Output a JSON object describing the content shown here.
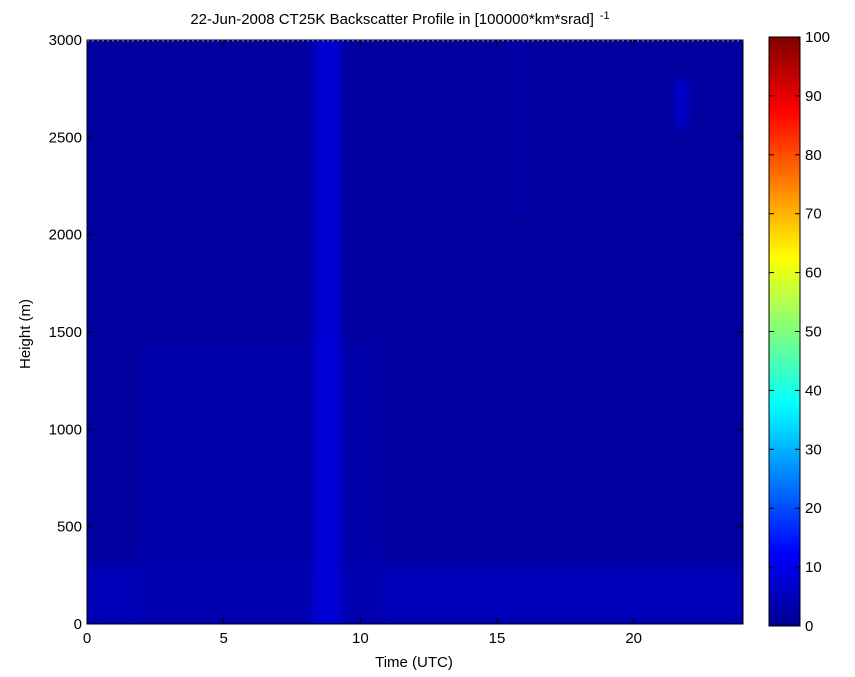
{
  "chart_data": {
    "type": "heatmap",
    "title": "22-Jun-2008 CT25K Backscatter Profile in [100000*km*srad]",
    "title_superscript": "-1",
    "xlabel": "Time (UTC)",
    "ylabel": "Height (m)",
    "xlim": [
      0,
      24
    ],
    "ylim": [
      0,
      3000
    ],
    "xticks": [
      0,
      5,
      10,
      15,
      20
    ],
    "yticks": [
      0,
      500,
      1000,
      1500,
      2000,
      2500,
      3000
    ],
    "colorbar": {
      "range": [
        0,
        100
      ],
      "ticks": [
        0,
        10,
        20,
        30,
        40,
        50,
        60,
        70,
        80,
        90,
        100
      ],
      "colormap": "jet"
    },
    "background_value": 3,
    "features": [
      {
        "kind": "surface_layer",
        "x": [
          0,
          24
        ],
        "y": [
          0,
          300
        ],
        "value": 6
      },
      {
        "kind": "boundary_layer",
        "x": [
          1.9,
          10.8
        ],
        "y": [
          0,
          1450
        ],
        "value": 4.5
      },
      {
        "kind": "column",
        "x": [
          8.3,
          9.3
        ],
        "y": [
          0,
          3000
        ],
        "value": 9
      },
      {
        "kind": "column",
        "x": [
          15.5,
          16
        ],
        "y": [
          2100,
          3000
        ],
        "value": 4.5
      },
      {
        "kind": "patch",
        "x": [
          21.5,
          22
        ],
        "y": [
          2550,
          2800
        ],
        "value": 8
      }
    ]
  }
}
